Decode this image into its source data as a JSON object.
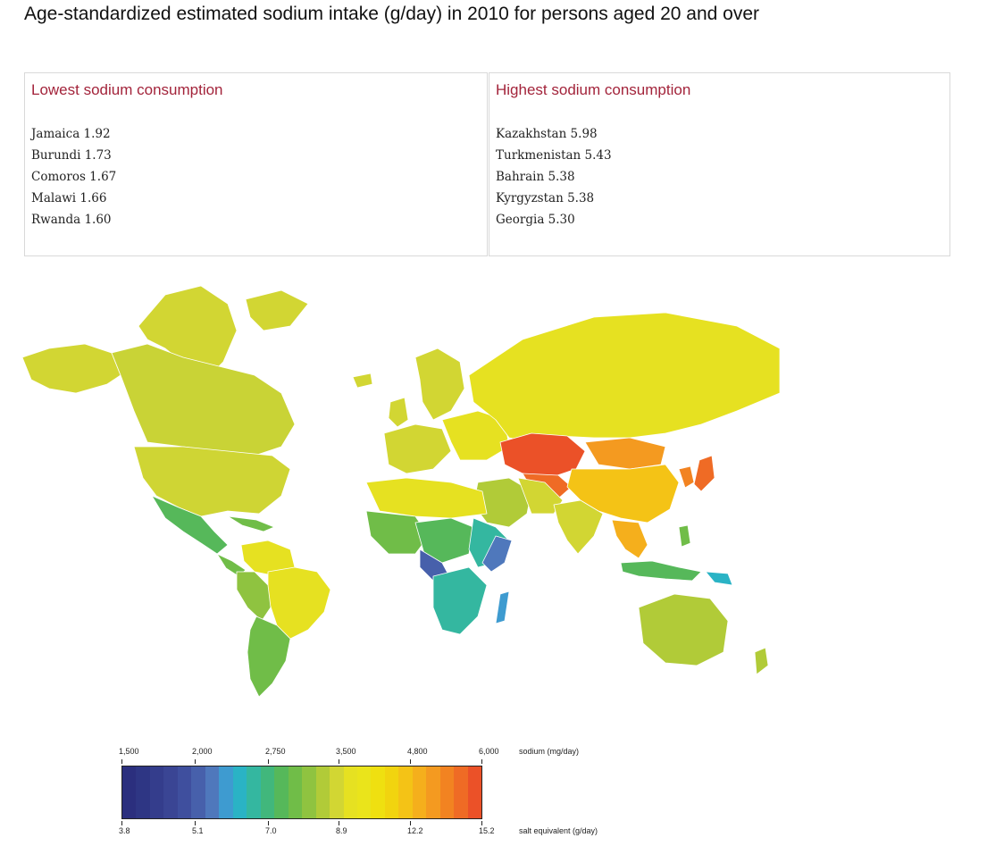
{
  "title": "Age-standardized estimated sodium intake (g/day) in 2010 for persons aged 20 and over",
  "lowest": {
    "heading": "Lowest sodium consumption",
    "items": [
      "Jamaica 1.92",
      "Burundi 1.73",
      "Comoros 1.67",
      "Malawi 1.66",
      "Rwanda 1.60"
    ]
  },
  "highest": {
    "heading": "Highest sodium consumption",
    "items": [
      "Kazakhstan 5.98",
      "Turkmenistan 5.43",
      "Bahrain 5.38",
      "Kyrgyzstan 5.38",
      "Georgia 5.30"
    ]
  },
  "legend": {
    "top_unit": "sodium (mg/day)",
    "bottom_unit": "salt equivalent (g/day)",
    "top_ticks": [
      "1,500",
      "2,000",
      "2,750",
      "3,500",
      "4,800",
      "6,000"
    ],
    "bottom_ticks": [
      "3.8",
      "5.1",
      "7.0",
      "8.9",
      "12.2",
      "15.2"
    ],
    "colors": [
      "#2b2f7e",
      "#2e3684",
      "#343d8c",
      "#3a4594",
      "#3f4f9e",
      "#4760ab",
      "#4f78bc",
      "#3e9bd0",
      "#2ab3c5",
      "#34b7a0",
      "#41b77c",
      "#56b85a",
      "#70bd48",
      "#8fc340",
      "#b1cb38",
      "#d2d633",
      "#e6e121",
      "#eae41b",
      "#efe010",
      "#f1d40f",
      "#f4c316",
      "#f5af1c",
      "#f49a20",
      "#f28321",
      "#ef6b25",
      "#eb5128"
    ],
    "scale_colors": {
      "low": "#2b2f7e",
      "mid_low": "#34b7a0",
      "mid": "#e6e121",
      "high": "#eb5128"
    }
  }
}
